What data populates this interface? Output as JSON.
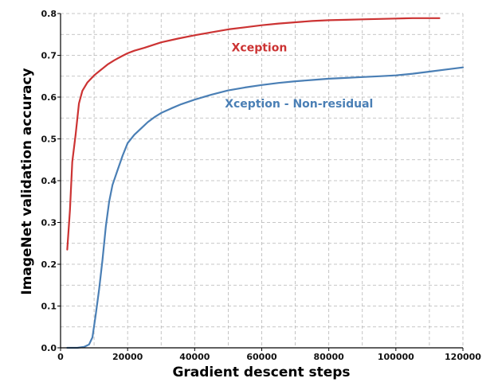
{
  "chart_data": {
    "type": "line",
    "xlabel": "Gradient descent steps",
    "ylabel": "ImageNet validation accuracy",
    "xlim": [
      0,
      120000
    ],
    "ylim": [
      0,
      0.8
    ],
    "x_ticks": [
      0,
      20000,
      40000,
      60000,
      80000,
      100000,
      120000
    ],
    "x_tick_labels": [
      "0",
      "20000",
      "40000",
      "60000",
      "80000",
      "100000",
      "120000"
    ],
    "y_ticks": [
      0.0,
      0.1,
      0.2,
      0.3,
      0.4,
      0.5,
      0.6,
      0.7,
      0.8
    ],
    "y_tick_labels": [
      "0.0",
      "0.1",
      "0.2",
      "0.3",
      "0.4",
      "0.5",
      "0.6",
      "0.7",
      "0.8"
    ],
    "grid": true,
    "legend": "inline labels",
    "series": [
      {
        "name": "Xception",
        "color": "#cc3333",
        "points": [
          [
            2000,
            0.235
          ],
          [
            2800,
            0.33
          ],
          [
            3500,
            0.445
          ],
          [
            4500,
            0.51
          ],
          [
            5500,
            0.585
          ],
          [
            6500,
            0.615
          ],
          [
            8000,
            0.635
          ],
          [
            10000,
            0.652
          ],
          [
            12000,
            0.665
          ],
          [
            14000,
            0.678
          ],
          [
            16000,
            0.688
          ],
          [
            18000,
            0.697
          ],
          [
            20000,
            0.705
          ],
          [
            22000,
            0.711
          ],
          [
            25000,
            0.718
          ],
          [
            28000,
            0.726
          ],
          [
            30000,
            0.731
          ],
          [
            35000,
            0.74
          ],
          [
            40000,
            0.748
          ],
          [
            45000,
            0.755
          ],
          [
            50000,
            0.762
          ],
          [
            55000,
            0.767
          ],
          [
            60000,
            0.772
          ],
          [
            65000,
            0.776
          ],
          [
            70000,
            0.779
          ],
          [
            75000,
            0.782
          ],
          [
            80000,
            0.784
          ],
          [
            85000,
            0.785
          ],
          [
            90000,
            0.786
          ],
          [
            95000,
            0.787
          ],
          [
            100000,
            0.788
          ],
          [
            105000,
            0.789
          ],
          [
            110000,
            0.789
          ],
          [
            113000,
            0.789
          ]
        ]
      },
      {
        "name": "Xception - Non-residual",
        "color": "#4a7fb5",
        "points": [
          [
            2000,
            0.0
          ],
          [
            5000,
            0.0
          ],
          [
            7000,
            0.002
          ],
          [
            8500,
            0.008
          ],
          [
            9500,
            0.025
          ],
          [
            10500,
            0.08
          ],
          [
            11500,
            0.14
          ],
          [
            12500,
            0.21
          ],
          [
            13500,
            0.29
          ],
          [
            14500,
            0.35
          ],
          [
            15500,
            0.39
          ],
          [
            17000,
            0.425
          ],
          [
            18500,
            0.46
          ],
          [
            20000,
            0.49
          ],
          [
            22000,
            0.51
          ],
          [
            24000,
            0.525
          ],
          [
            26000,
            0.54
          ],
          [
            28000,
            0.552
          ],
          [
            30000,
            0.562
          ],
          [
            33000,
            0.573
          ],
          [
            36000,
            0.583
          ],
          [
            40000,
            0.594
          ],
          [
            45000,
            0.606
          ],
          [
            50000,
            0.616
          ],
          [
            55000,
            0.623
          ],
          [
            60000,
            0.629
          ],
          [
            65000,
            0.634
          ],
          [
            70000,
            0.638
          ],
          [
            75000,
            0.641
          ],
          [
            80000,
            0.644
          ],
          [
            85000,
            0.646
          ],
          [
            90000,
            0.648
          ],
          [
            95000,
            0.65
          ],
          [
            100000,
            0.652
          ],
          [
            105000,
            0.656
          ],
          [
            110000,
            0.661
          ],
          [
            115000,
            0.666
          ],
          [
            120000,
            0.671
          ]
        ]
      }
    ]
  }
}
